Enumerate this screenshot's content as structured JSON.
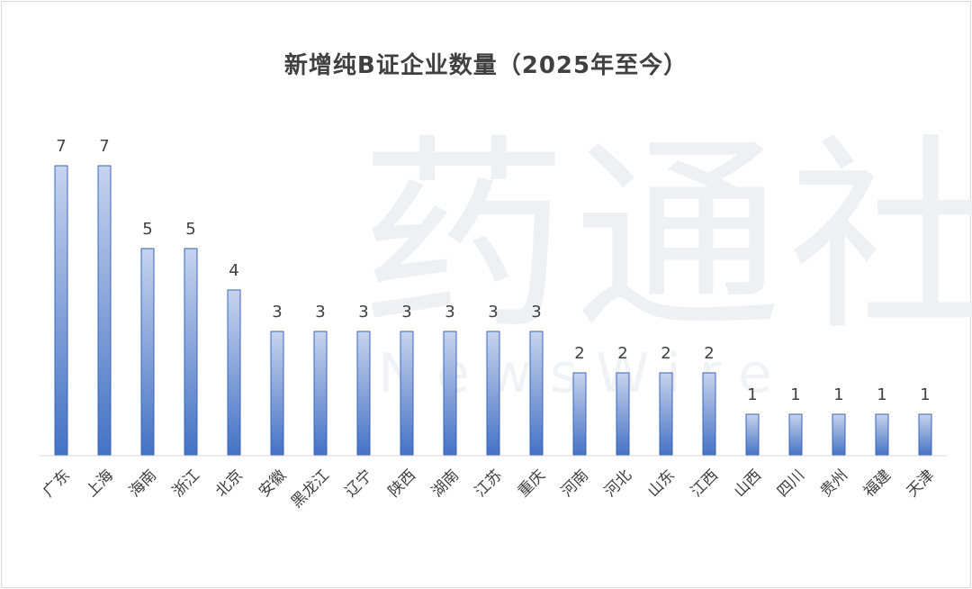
{
  "chart_data": {
    "type": "bar",
    "title": "新增纯B证企业数量（2025年至今）",
    "categories": [
      "广东",
      "上海",
      "海南",
      "浙江",
      "北京",
      "安徽",
      "黑龙江",
      "辽宁",
      "陕西",
      "湖南",
      "江苏",
      "重庆",
      "河南",
      "河北",
      "山东",
      "江西",
      "山西",
      "四川",
      "贵州",
      "福建",
      "天津"
    ],
    "values": [
      7,
      7,
      5,
      5,
      4,
      3,
      3,
      3,
      3,
      3,
      3,
      3,
      2,
      2,
      2,
      2,
      1,
      1,
      1,
      1,
      1
    ],
    "xlabel": "",
    "ylabel": "",
    "ylim": [
      0,
      7
    ],
    "grid": false,
    "legend": "none",
    "colors": {
      "bar_top": "#c7d3ee",
      "bar_bottom": "#4472c4",
      "bar_edge": "#3a64b8",
      "text": "#404040",
      "axis": "#d9d9d9"
    }
  },
  "watermark": {
    "main": "药通社",
    "sub": "NewsWire"
  }
}
